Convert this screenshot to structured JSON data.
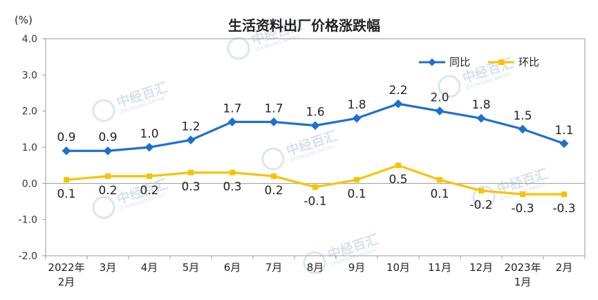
{
  "colors": {
    "series1": "#1f6fd1",
    "series2": "#f7c300",
    "axis": "#999999"
  },
  "watermark": {
    "text": "中经百汇",
    "sub": "ZHONGJING BAIHUI"
  },
  "chart_data": {
    "type": "line",
    "title": "生活资料出厂价格涨跌幅",
    "unit": "(%)",
    "ylim": [
      -2.0,
      4.0
    ],
    "yticks": [
      "4.0",
      "3.0",
      "2.0",
      "1.0",
      "0.0",
      "-1.0",
      "-2.0"
    ],
    "ytick_values": [
      4,
      3,
      2,
      1,
      0,
      -1,
      -2
    ],
    "categories": [
      [
        "2022年",
        "2月"
      ],
      [
        "3月"
      ],
      [
        "4月"
      ],
      [
        "5月"
      ],
      [
        "6月"
      ],
      [
        "7月"
      ],
      [
        "8月"
      ],
      [
        "9月"
      ],
      [
        "10月"
      ],
      [
        "11月"
      ],
      [
        "12月"
      ],
      [
        "2023年",
        "1月"
      ],
      [
        "2月"
      ]
    ],
    "legend_position": "top-right",
    "grid": false,
    "series": [
      {
        "name": "同比",
        "color": "#1f6fd1",
        "values": [
          0.9,
          0.9,
          1.0,
          1.2,
          1.7,
          1.7,
          1.6,
          1.8,
          2.2,
          2.0,
          1.8,
          1.5,
          1.1
        ],
        "labels": [
          "0.9",
          "0.9",
          "1.0",
          "1.2",
          "1.7",
          "1.7",
          "1.6",
          "1.8",
          "2.2",
          "2.0",
          "1.8",
          "1.5",
          "1.1"
        ]
      },
      {
        "name": "环比",
        "color": "#f7c300",
        "values": [
          0.1,
          0.2,
          0.2,
          0.3,
          0.3,
          0.2,
          -0.1,
          0.1,
          0.5,
          0.1,
          -0.2,
          -0.3,
          -0.3
        ],
        "labels": [
          "0.1",
          "0.2",
          "0.2",
          "0.3",
          "0.3",
          "0.2",
          "-0.1",
          "0.1",
          "0.5",
          "0.1",
          "-0.2",
          "-0.3",
          "-0.3"
        ]
      }
    ]
  }
}
